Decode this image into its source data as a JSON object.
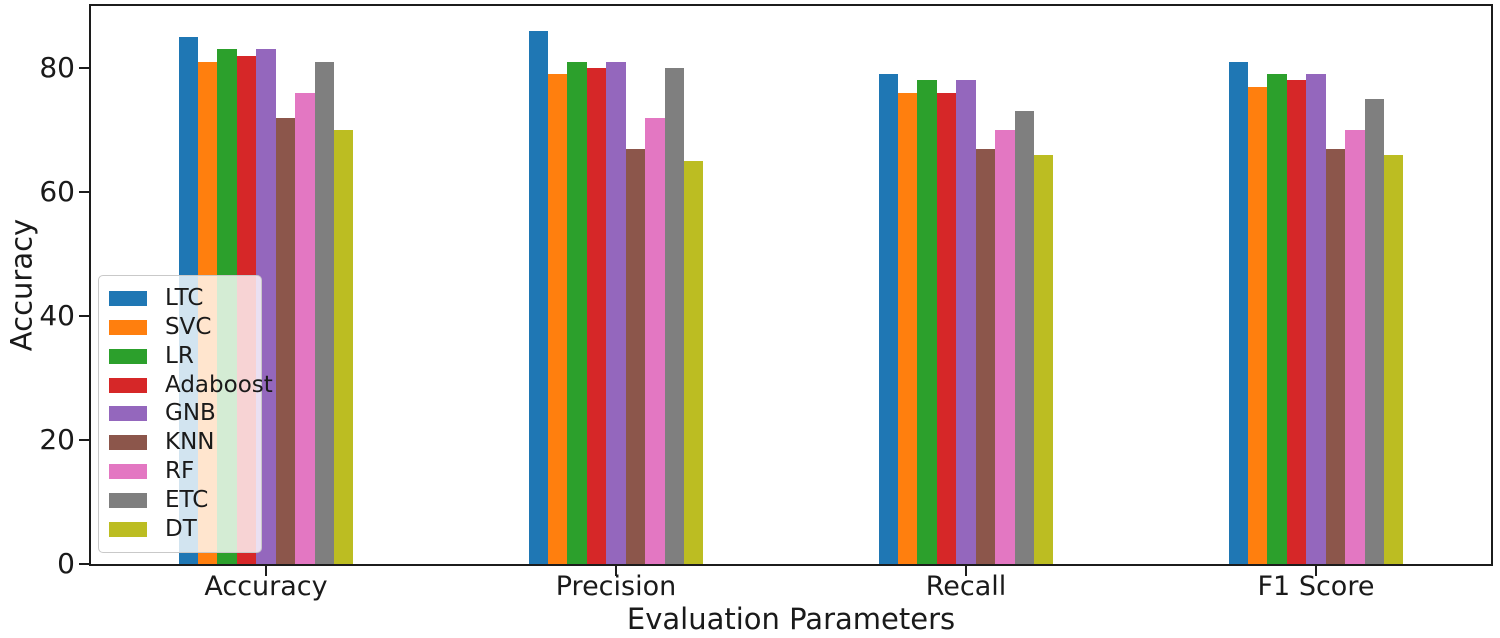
{
  "chart_data": {
    "type": "bar",
    "title": "",
    "xlabel": "Evaluation Parameters",
    "ylabel": "Accuracy",
    "categories": [
      "Accuracy",
      "Precision",
      "Recall",
      "F1 Score"
    ],
    "series": [
      {
        "name": "LTC",
        "color": "#1f77b4",
        "values": [
          85,
          86,
          79,
          81
        ]
      },
      {
        "name": "SVC",
        "color": "#ff7f0e",
        "values": [
          81,
          79,
          76,
          77
        ]
      },
      {
        "name": "LR",
        "color": "#2ca02c",
        "values": [
          83,
          81,
          78,
          79
        ]
      },
      {
        "name": "Adaboost",
        "color": "#d62728",
        "values": [
          82,
          80,
          76,
          78
        ]
      },
      {
        "name": "GNB",
        "color": "#9467bd",
        "values": [
          83,
          81,
          78,
          79
        ]
      },
      {
        "name": "KNN",
        "color": "#8c564b",
        "values": [
          72,
          67,
          67,
          67
        ]
      },
      {
        "name": "RF",
        "color": "#e377c2",
        "values": [
          76,
          72,
          70,
          70
        ]
      },
      {
        "name": "ETC",
        "color": "#7f7f7f",
        "values": [
          81,
          80,
          73,
          75
        ]
      },
      {
        "name": "DT",
        "color": "#bcbd22",
        "values": [
          70,
          65,
          66,
          66
        ]
      }
    ],
    "ylim": [
      0,
      90
    ],
    "yticks": [
      0,
      20,
      40,
      60,
      80
    ],
    "grid": false,
    "legend_position": "lower-left-inside",
    "spine_color": "#1c1c1c",
    "background_color": "#ffffff"
  }
}
